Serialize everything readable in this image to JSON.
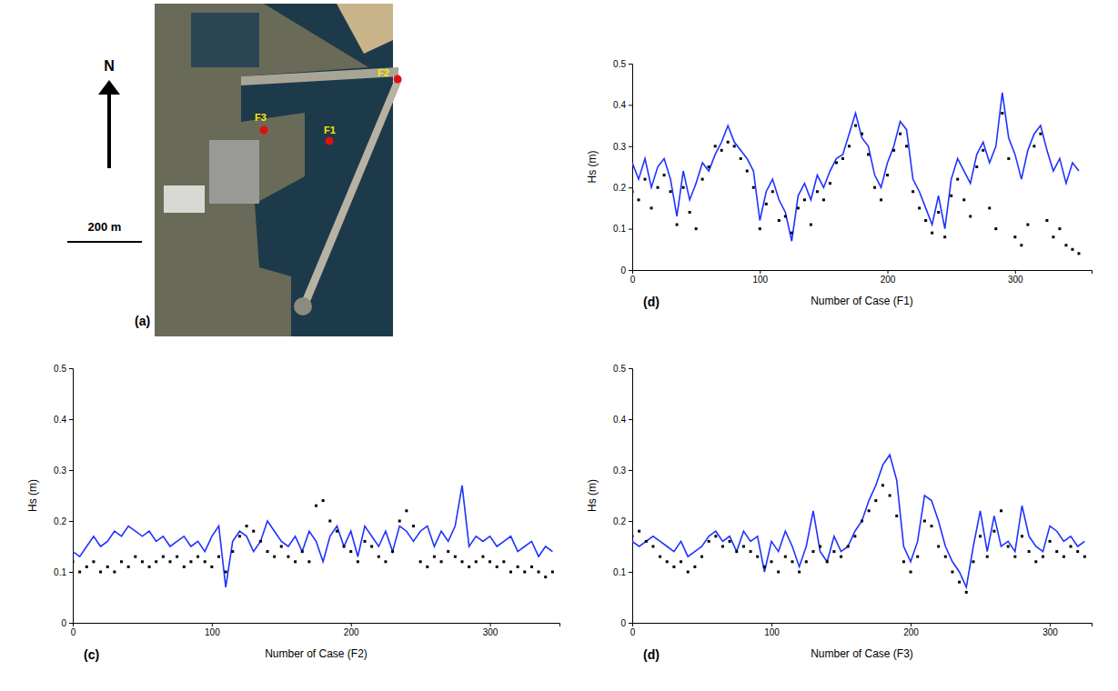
{
  "map": {
    "label": "(a)",
    "north": "N",
    "scale": "200 m",
    "stations": [
      "F1",
      "F2",
      "F3"
    ]
  },
  "chart_data": [
    {
      "type": "line",
      "annotations": [
        "(d)"
      ],
      "xlabel": "Number of Case (F1)",
      "ylabel": "Hs (m)",
      "xlim": [
        0,
        360
      ],
      "xticks": [
        0,
        100,
        200,
        300
      ],
      "ylim": [
        0,
        0.5
      ],
      "yticks": [
        0,
        0.1,
        0.2,
        0.3,
        0.4,
        0.5
      ],
      "x": [
        0,
        5,
        10,
        15,
        20,
        25,
        30,
        35,
        40,
        45,
        50,
        55,
        60,
        65,
        70,
        75,
        80,
        85,
        90,
        95,
        100,
        105,
        110,
        115,
        120,
        125,
        130,
        135,
        140,
        145,
        150,
        155,
        160,
        165,
        170,
        175,
        180,
        185,
        190,
        195,
        200,
        205,
        210,
        215,
        220,
        225,
        230,
        235,
        240,
        245,
        250,
        255,
        260,
        265,
        270,
        275,
        280,
        285,
        290,
        295,
        300,
        305,
        310,
        315,
        320,
        325,
        330,
        335,
        340,
        345,
        350
      ],
      "series": [
        {
          "type": "line",
          "color": "#1f33ff",
          "line_style": "solid",
          "values": [
            0.26,
            0.22,
            0.27,
            0.2,
            0.25,
            0.27,
            0.22,
            0.13,
            0.24,
            0.17,
            0.21,
            0.26,
            0.24,
            0.28,
            0.31,
            0.35,
            0.31,
            0.29,
            0.27,
            0.24,
            0.12,
            0.19,
            0.22,
            0.17,
            0.14,
            0.07,
            0.18,
            0.21,
            0.17,
            0.23,
            0.2,
            0.24,
            0.27,
            0.28,
            0.33,
            0.38,
            0.32,
            0.3,
            0.23,
            0.2,
            0.26,
            0.3,
            0.36,
            0.34,
            0.22,
            0.19,
            0.15,
            0.11,
            0.18,
            0.1,
            0.22,
            0.27,
            0.24,
            0.21,
            0.28,
            0.31,
            0.26,
            0.3,
            0.43,
            0.32,
            0.28,
            0.22,
            0.29,
            0.33,
            0.35,
            0.29,
            0.24,
            0.27,
            0.21,
            0.26,
            0.24
          ]
        },
        {
          "type": "scatter",
          "color": "#000000",
          "marker": "square",
          "values": [
            0.19,
            0.17,
            0.22,
            0.15,
            0.2,
            0.23,
            0.19,
            0.11,
            0.2,
            0.14,
            0.1,
            0.22,
            0.25,
            0.3,
            0.29,
            0.31,
            0.3,
            0.27,
            0.24,
            0.2,
            0.1,
            0.16,
            0.19,
            0.12,
            0.13,
            0.09,
            0.15,
            0.17,
            0.11,
            0.19,
            0.17,
            0.21,
            0.26,
            0.27,
            0.3,
            0.35,
            0.33,
            0.28,
            0.2,
            0.17,
            0.23,
            0.29,
            0.33,
            0.3,
            0.19,
            0.15,
            0.12,
            0.09,
            0.14,
            0.08,
            0.18,
            0.22,
            0.17,
            0.13,
            0.25,
            0.29,
            0.15,
            0.1,
            0.38,
            0.27,
            0.08,
            0.06,
            0.11,
            0.3,
            0.33,
            0.12,
            0.08,
            0.1,
            0.06,
            0.05,
            0.04
          ]
        }
      ]
    },
    {
      "type": "line",
      "annotations": [
        "(c)"
      ],
      "xlabel": "Number of Case (F2)",
      "ylabel": "Hs (m)",
      "xlim": [
        0,
        350
      ],
      "xticks": [
        0,
        100,
        200,
        300
      ],
      "ylim": [
        0,
        0.5
      ],
      "yticks": [
        0,
        0.1,
        0.2,
        0.3,
        0.4,
        0.5
      ],
      "x": [
        0,
        5,
        10,
        15,
        20,
        25,
        30,
        35,
        40,
        45,
        50,
        55,
        60,
        65,
        70,
        75,
        80,
        85,
        90,
        95,
        100,
        105,
        110,
        115,
        120,
        125,
        130,
        135,
        140,
        145,
        150,
        155,
        160,
        165,
        170,
        175,
        180,
        185,
        190,
        195,
        200,
        205,
        210,
        215,
        220,
        225,
        230,
        235,
        240,
        245,
        250,
        255,
        260,
        265,
        270,
        275,
        280,
        285,
        290,
        295,
        300,
        305,
        310,
        315,
        320,
        325,
        330,
        335,
        340,
        345
      ],
      "series": [
        {
          "type": "line",
          "color": "#1f33ff",
          "line_style": "solid",
          "values": [
            0.14,
            0.13,
            0.15,
            0.17,
            0.15,
            0.16,
            0.18,
            0.17,
            0.19,
            0.18,
            0.17,
            0.18,
            0.16,
            0.17,
            0.15,
            0.16,
            0.17,
            0.15,
            0.16,
            0.14,
            0.17,
            0.19,
            0.07,
            0.16,
            0.18,
            0.17,
            0.14,
            0.16,
            0.2,
            0.18,
            0.16,
            0.15,
            0.17,
            0.14,
            0.18,
            0.16,
            0.12,
            0.17,
            0.19,
            0.15,
            0.18,
            0.13,
            0.19,
            0.17,
            0.15,
            0.18,
            0.14,
            0.19,
            0.18,
            0.16,
            0.18,
            0.19,
            0.15,
            0.18,
            0.16,
            0.19,
            0.27,
            0.15,
            0.17,
            0.16,
            0.17,
            0.15,
            0.16,
            0.17,
            0.14,
            0.15,
            0.16,
            0.13,
            0.15,
            0.14
          ]
        },
        {
          "type": "scatter",
          "color": "#000000",
          "marker": "square",
          "values": [
            0.12,
            0.1,
            0.11,
            0.12,
            0.1,
            0.11,
            0.1,
            0.12,
            0.11,
            0.13,
            0.12,
            0.11,
            0.12,
            0.13,
            0.12,
            0.13,
            0.11,
            0.12,
            0.13,
            0.12,
            0.11,
            0.13,
            0.1,
            0.14,
            0.17,
            0.19,
            0.18,
            0.16,
            0.14,
            0.13,
            0.15,
            0.13,
            0.12,
            0.14,
            0.12,
            0.23,
            0.24,
            0.2,
            0.18,
            0.15,
            0.14,
            0.12,
            0.16,
            0.15,
            0.13,
            0.12,
            0.14,
            0.2,
            0.22,
            0.19,
            0.12,
            0.11,
            0.13,
            0.12,
            0.14,
            0.13,
            0.12,
            0.11,
            0.12,
            0.13,
            0.12,
            0.11,
            0.12,
            0.1,
            0.11,
            0.1,
            0.11,
            0.1,
            0.09,
            0.1
          ]
        }
      ]
    },
    {
      "type": "line",
      "annotations": [
        "(d)"
      ],
      "xlabel": "Number of Case (F3)",
      "ylabel": "Hs (m)",
      "xlim": [
        0,
        330
      ],
      "xticks": [
        0,
        100,
        200,
        300
      ],
      "ylim": [
        0,
        0.5
      ],
      "yticks": [
        0,
        0.1,
        0.2,
        0.3,
        0.4,
        0.5
      ],
      "x": [
        0,
        5,
        10,
        15,
        20,
        25,
        30,
        35,
        40,
        45,
        50,
        55,
        60,
        65,
        70,
        75,
        80,
        85,
        90,
        95,
        100,
        105,
        110,
        115,
        120,
        125,
        130,
        135,
        140,
        145,
        150,
        155,
        160,
        165,
        170,
        175,
        180,
        185,
        190,
        195,
        200,
        205,
        210,
        215,
        220,
        225,
        230,
        235,
        240,
        245,
        250,
        255,
        260,
        265,
        270,
        275,
        280,
        285,
        290,
        295,
        300,
        305,
        310,
        315,
        320,
        325
      ],
      "series": [
        {
          "type": "line",
          "color": "#1f33ff",
          "line_style": "solid",
          "values": [
            0.16,
            0.15,
            0.16,
            0.17,
            0.16,
            0.15,
            0.14,
            0.16,
            0.13,
            0.14,
            0.15,
            0.17,
            0.18,
            0.16,
            0.17,
            0.14,
            0.18,
            0.16,
            0.17,
            0.1,
            0.16,
            0.14,
            0.18,
            0.15,
            0.11,
            0.15,
            0.22,
            0.14,
            0.12,
            0.17,
            0.14,
            0.15,
            0.18,
            0.2,
            0.24,
            0.27,
            0.31,
            0.33,
            0.28,
            0.15,
            0.12,
            0.16,
            0.25,
            0.24,
            0.2,
            0.15,
            0.12,
            0.1,
            0.07,
            0.15,
            0.22,
            0.14,
            0.21,
            0.15,
            0.16,
            0.14,
            0.23,
            0.17,
            0.15,
            0.14,
            0.19,
            0.18,
            0.16,
            0.17,
            0.15,
            0.16
          ]
        },
        {
          "type": "scatter",
          "color": "#000000",
          "marker": "square",
          "values": [
            0.17,
            0.18,
            0.16,
            0.15,
            0.13,
            0.12,
            0.11,
            0.12,
            0.1,
            0.11,
            0.13,
            0.16,
            0.17,
            0.15,
            0.16,
            0.14,
            0.15,
            0.14,
            0.13,
            0.11,
            0.12,
            0.1,
            0.13,
            0.12,
            0.1,
            0.12,
            0.14,
            0.15,
            0.12,
            0.14,
            0.13,
            0.15,
            0.17,
            0.2,
            0.22,
            0.24,
            0.27,
            0.25,
            0.21,
            0.12,
            0.1,
            0.13,
            0.2,
            0.19,
            0.15,
            0.13,
            0.1,
            0.08,
            0.06,
            0.12,
            0.17,
            0.13,
            0.18,
            0.22,
            0.15,
            0.13,
            0.17,
            0.14,
            0.12,
            0.13,
            0.16,
            0.14,
            0.13,
            0.15,
            0.14,
            0.13
          ]
        }
      ]
    }
  ]
}
